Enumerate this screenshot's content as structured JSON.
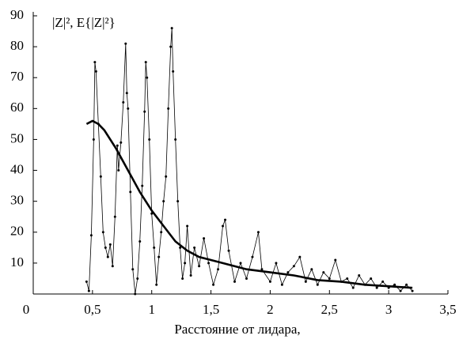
{
  "chart_data": {
    "type": "line",
    "annotation": "|Z|², E{|Z|²}",
    "x_label": "Расстояние от лидара,",
    "xlim": [
      0,
      3.5
    ],
    "ylim": [
      0,
      90
    ],
    "xticks": [
      0,
      {
        "value": 0.5,
        "label": "0,5"
      },
      1,
      {
        "value": 1.5,
        "label": "1,5"
      },
      2,
      {
        "value": 2.5,
        "label": "2,5"
      },
      3,
      {
        "value": 3.5,
        "label": "3,5"
      }
    ],
    "yticks": [
      10,
      20,
      30,
      40,
      50,
      60,
      70,
      80,
      90
    ],
    "series": [
      {
        "color": "#000000",
        "markers": true,
        "x": [
          0.45,
          0.47,
          0.49,
          0.51,
          0.52,
          0.53,
          0.55,
          0.57,
          0.59,
          0.61,
          0.63,
          0.65,
          0.67,
          0.69,
          0.71,
          0.72,
          0.74,
          0.76,
          0.78,
          0.79,
          0.8,
          0.82,
          0.84,
          0.86,
          0.88,
          0.9,
          0.92,
          0.94,
          0.95,
          0.96,
          0.98,
          1.0,
          1.02,
          1.04,
          1.06,
          1.08,
          1.1,
          1.12,
          1.14,
          1.16,
          1.17,
          1.18,
          1.2,
          1.22,
          1.24,
          1.26,
          1.28,
          1.3,
          1.33,
          1.36,
          1.4,
          1.44,
          1.48,
          1.52,
          1.56,
          1.6,
          1.62,
          1.65,
          1.7,
          1.75,
          1.8,
          1.85,
          1.9,
          1.93,
          2.0,
          2.05,
          2.1,
          2.15,
          2.2,
          2.25,
          2.3,
          2.35,
          2.4,
          2.45,
          2.5,
          2.55,
          2.6,
          2.65,
          2.7,
          2.75,
          2.8,
          2.85,
          2.9,
          2.95,
          3.0,
          3.05,
          3.1,
          3.15,
          3.2
        ],
        "values": [
          4,
          1,
          19,
          50,
          75,
          72,
          55,
          38,
          20,
          15,
          12,
          16,
          9,
          25,
          48,
          40,
          49,
          62,
          81,
          65,
          60,
          33,
          8,
          0,
          5,
          17,
          35,
          59,
          75,
          70,
          50,
          26,
          15,
          3,
          12,
          20,
          30,
          38,
          60,
          80,
          86,
          72,
          50,
          30,
          15,
          5,
          10,
          22,
          6,
          15,
          9,
          18,
          10,
          3,
          8,
          22,
          24,
          14,
          4,
          10,
          5,
          12,
          20,
          8,
          4,
          10,
          3,
          7,
          9,
          12,
          4,
          8,
          3,
          7,
          5,
          11,
          4,
          5,
          2,
          6,
          3,
          5,
          2,
          4,
          2,
          3,
          1,
          3,
          1
        ]
      },
      {
        "color": "#000000",
        "markers": false,
        "x": [
          0.45,
          0.5,
          0.55,
          0.6,
          0.7,
          0.8,
          0.9,
          1.0,
          1.1,
          1.2,
          1.3,
          1.4,
          1.5,
          1.6,
          1.8,
          2.0,
          2.2,
          2.4,
          2.6,
          2.8,
          3.0,
          3.2
        ],
        "values": [
          55,
          56,
          55,
          53,
          47,
          40,
          33,
          27,
          22,
          17,
          14,
          12,
          11,
          10,
          8,
          7,
          6,
          4.5,
          4,
          3,
          2.5,
          2
        ]
      }
    ]
  }
}
